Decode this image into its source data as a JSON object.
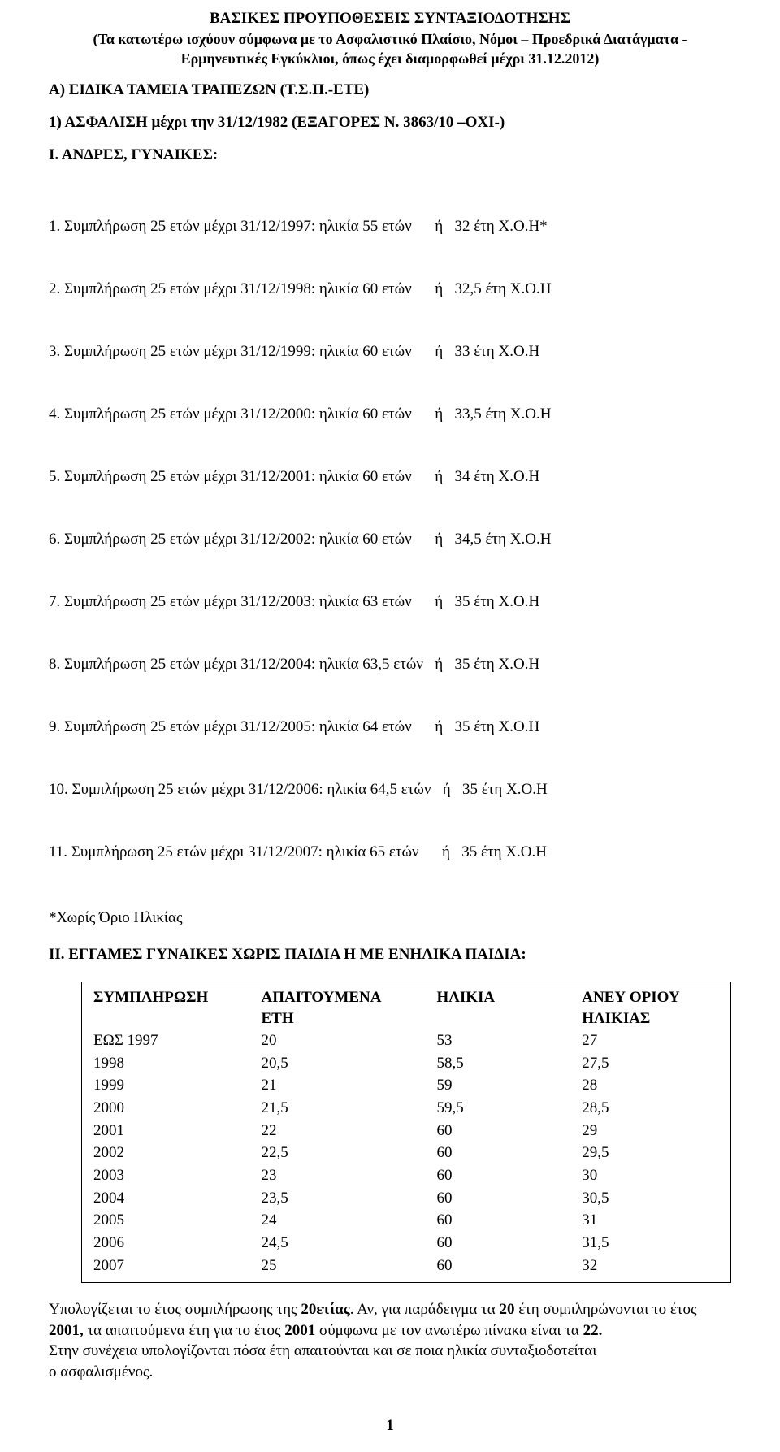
{
  "header": {
    "title": "ΒΑΣΙΚΕΣ   ΠΡΟΥΠΟΘΕΣΕΙΣ   ΣΥΝΤΑΞΙΟΔΟΤΗΣΗΣ",
    "sub1": "(Τα κατωτέρω ισχύουν σύμφωνα με το Ασφαλιστικό Πλαίσιο, Νόμοι – Προεδρικά Διατάγματα -",
    "sub2": "Ερμηνευτικές Εγκύκλιοι,  όπως έχει διαμορφωθεί μέχρι 31.12.2012)"
  },
  "sectionA": "Α) ΕΙΔΙΚΑ ΤΑΜΕΙΑ ΤΡΑΠΕΖΩΝ  (Τ.Σ.Π.-ΕΤΕ)",
  "section1": "1) ΑΣΦΑΛΙΣΗ μέχρι την 31/12/1982  (ΕΞΑΓΟΡΕΣ  Ν. 3863/10 –ΟΧΙ-)",
  "sectionI": "Ι. ΑΝΔΡΕΣ, ΓΥΝΑΙΚΕΣ:",
  "rules": [
    "1. Συμπλήρωση 25 ετών μέχρι 31/12/1997: ηλικία 55 ετών      ή   32 έτη Χ.Ο.Η*",
    "2. Συμπλήρωση 25 ετών μέχρι 31/12/1998: ηλικία 60 ετών      ή   32,5 έτη Χ.Ο.Η",
    "3. Συμπλήρωση 25 ετών μέχρι 31/12/1999: ηλικία 60 ετών      ή   33 έτη Χ.Ο.Η",
    "4. Συμπλήρωση 25 ετών μέχρι 31/12/2000: ηλικία 60 ετών      ή   33,5 έτη Χ.Ο.Η",
    "5. Συμπλήρωση 25 ετών μέχρι 31/12/2001: ηλικία 60 ετών      ή   34 έτη Χ.Ο.Η",
    "6. Συμπλήρωση 25 ετών μέχρι 31/12/2002: ηλικία 60 ετών      ή   34,5 έτη Χ.Ο.Η",
    "7. Συμπλήρωση 25 ετών μέχρι 31/12/2003: ηλικία 63 ετών      ή   35 έτη Χ.Ο.Η",
    "8. Συμπλήρωση 25 ετών μέχρι 31/12/2004: ηλικία 63,5 ετών   ή   35 έτη Χ.Ο.Η",
    "9. Συμπλήρωση 25 ετών μέχρι 31/12/2005: ηλικία 64 ετών      ή   35 έτη Χ.Ο.Η",
    "10. Συμπλήρωση 25 ετών μέχρι 31/12/2006: ηλικία 64,5 ετών   ή   35 έτη Χ.Ο.Η",
    "11. Συμπλήρωση 25 ετών μέχρι 31/12/2007: ηλικία 65 ετών      ή   35 έτη Χ.Ο.Η"
  ],
  "note": "*Χωρίς Όριο Ηλικίας",
  "sectionII": "ΙΙ.   ΕΓΓΑΜΕΣ ΓΥΝΑΙΚΕΣ ΧΩΡΙΣ ΠΑΙΔΙΑ Η ΜΕ ΕΝΗΛΙΚΑ ΠΑΙΔΙΑ:",
  "table": {
    "headers": {
      "c1a": "ΣΥΜΠΛΗΡΩΣΗ",
      "c1b": "",
      "c2a": "ΑΠΑΙΤΟΥΜΕΝΑ",
      "c2b": "ΕΤΗ",
      "c3a": "ΗΛΙΚΙΑ",
      "c3b": "",
      "c4a": "ΑΝΕΥ ΟΡΙΟΥ",
      "c4b": "ΗΛΙΚΙΑΣ"
    },
    "rows": [
      {
        "c1": "ΕΩΣ 1997",
        "c2": "20",
        "c3": "53",
        "c4": "27"
      },
      {
        "c1": "1998",
        "c2": "20,5",
        "c3": "58,5",
        "c4": "27,5"
      },
      {
        "c1": "1999",
        "c2": "21",
        "c3": "59",
        "c4": "28"
      },
      {
        "c1": "2000",
        "c2": "21,5",
        "c3": "59,5",
        "c4": "28,5"
      },
      {
        "c1": "2001",
        "c2": "22",
        "c3": "60",
        "c4": "29"
      },
      {
        "c1": "2002",
        "c2": "22,5",
        "c3": "60",
        "c4": "29,5"
      },
      {
        "c1": "2003",
        "c2": "23",
        "c3": "60",
        "c4": "30"
      },
      {
        "c1": "2004",
        "c2": "23,5",
        "c3": "60",
        "c4": "30,5"
      },
      {
        "c1": "2005",
        "c2": "24",
        "c3": "60",
        "c4": "31"
      },
      {
        "c1": "2006",
        "c2": "24,5",
        "c3": "60",
        "c4": "31,5"
      },
      {
        "c1": "2007",
        "c2": "25",
        "c3": "60",
        "c4": "32"
      }
    ]
  },
  "footer": {
    "p1a": "Υπολογίζεται το έτος συμπλήρωσης της ",
    "p1b": "20ετίας",
    "p1c": ". Αν, για παράδειγμα τα ",
    "p1d": "20",
    "p1e": " έτη συμπληρώνονται το έτος ",
    "p1f": "2001,",
    "p1g": " τα απαιτούμενα έτη για το έτος ",
    "p1h": "2001",
    "p1i": " σύμφωνα με τον ανωτέρω πίνακα είναι τα ",
    "p1j": "22.",
    "p2": "Στην συνέχεια υπολογίζονται πόσα έτη απαιτούνται και σε ποια ηλικία συνταξιοδοτείται",
    "p3": "ο ασφαλισμένος."
  },
  "pageNumber": "1",
  "style": {
    "background_color": "#ffffff",
    "text_color": "#000000",
    "font_family": "Times New Roman",
    "base_fontsize_pt": 14,
    "border_color": "#000000"
  }
}
